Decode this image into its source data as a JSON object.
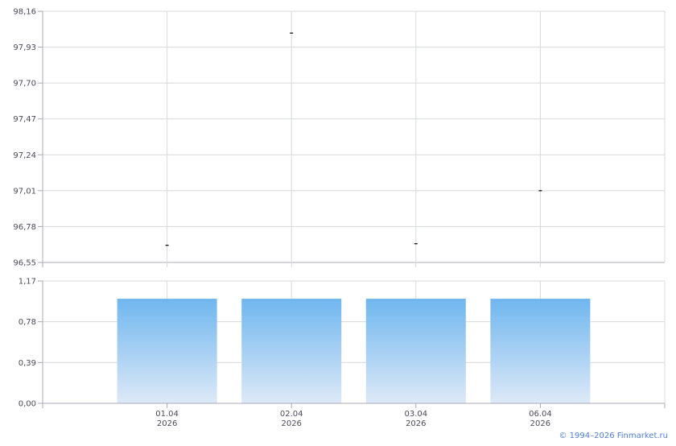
{
  "chart_data": [
    {
      "type": "scatter",
      "marker": "dash",
      "categories": [
        "01.04\n2026",
        "02.04\n2026",
        "03.04\n2026",
        "06.04\n2026"
      ],
      "values": [
        96.66,
        98.02,
        96.67,
        97.01
      ],
      "ylim": [
        96.55,
        98.16
      ],
      "yticks": [
        "96,55",
        "96,78",
        "97,01",
        "97,24",
        "97,47",
        "97,70",
        "97,93",
        "98,16"
      ],
      "grid": true,
      "color": "#000000"
    },
    {
      "type": "bar",
      "categories": [
        "01.04\n2026",
        "02.04\n2026",
        "03.04\n2026",
        "06.04\n2026"
      ],
      "values": [
        1.0,
        1.0,
        1.0,
        1.0
      ],
      "ylim": [
        0,
        1.17
      ],
      "yticks": [
        "0,00",
        "0,39",
        "0,78",
        "1,17"
      ],
      "grid": true,
      "color_top": "#6fb6ee",
      "color_bottom": "#dde9f7"
    }
  ],
  "xlabels": [
    [
      "01.04",
      "2026"
    ],
    [
      "02.04",
      "2026"
    ],
    [
      "03.04",
      "2026"
    ],
    [
      "06.04",
      "2026"
    ]
  ],
  "copyright": "© 1994–2026 Finmarket.ru"
}
